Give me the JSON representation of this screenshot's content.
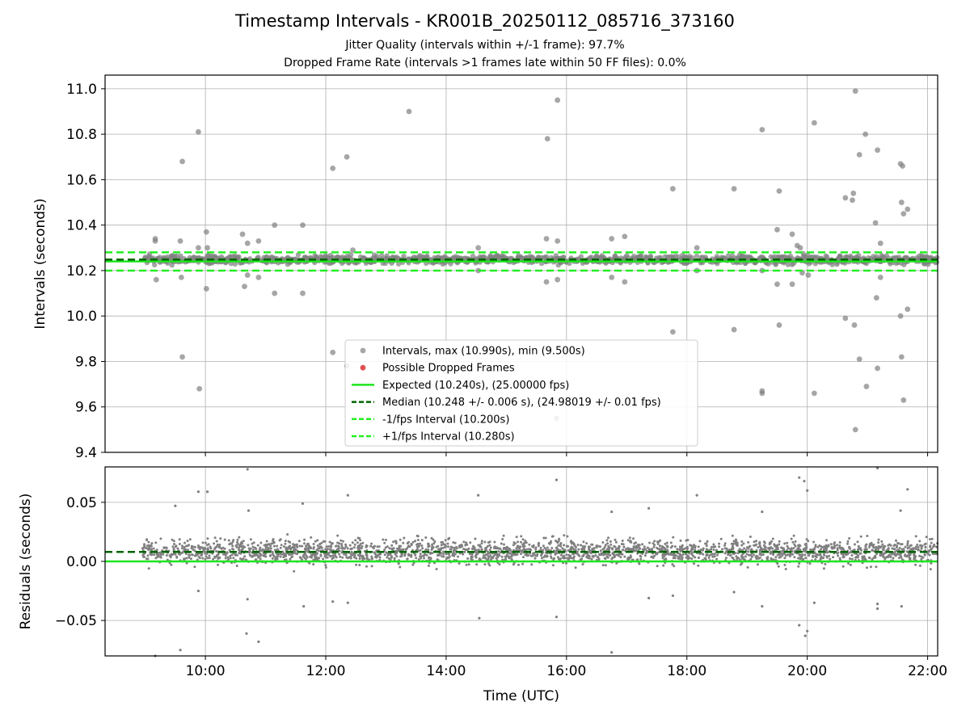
{
  "chart_data": [
    {
      "type": "scatter",
      "title": "Timestamp Intervals - KR001B_20250112_085716_373160",
      "subtitles": [
        "Jitter Quality (intervals within +/-1 frame): 97.7%",
        "Dropped Frame Rate (intervals >1 frames late within 50 FF files): 0.0%"
      ],
      "xlabel": "",
      "ylabel": "Intervals (seconds)",
      "xlim": [
        "08:20",
        "22:10"
      ],
      "ylim": [
        9.4,
        11.06
      ],
      "xtick_labels": [
        "10:00",
        "12:00",
        "14:00",
        "16:00",
        "18:00",
        "20:00",
        "22:00"
      ],
      "ytick_labels": [
        "9.4",
        "9.6",
        "9.8",
        "10.0",
        "10.2",
        "10.4",
        "10.6",
        "10.8",
        "11.0"
      ],
      "grid": true,
      "legend_position": "lower-center",
      "legend": [
        "Intervals, max (10.990s), min (9.500s)",
        "Possible Dropped Frames",
        "Expected (10.240s), (25.00000 fps)",
        "Median (10.248 +/- 0.006 s), (24.98019 +/- 0.01 fps)",
        "-1/fps Interval (10.200s)",
        "+1/fps Interval (10.280s)"
      ],
      "reference_lines": {
        "expected": 10.24,
        "median": 10.248,
        "minus_1_fps": 10.2,
        "plus_1_fps": 10.28
      },
      "dense_band": {
        "x_start": "08:57",
        "x_end": "22:10",
        "center": 10.248,
        "spread": 0.025
      },
      "outliers": [
        [
          "09:10",
          10.34
        ],
        [
          "09:10",
          10.33
        ],
        [
          "09:11",
          10.16
        ],
        [
          "09:35",
          10.33
        ],
        [
          "09:37",
          10.68
        ],
        [
          "09:37",
          9.82
        ],
        [
          "09:36",
          10.17
        ],
        [
          "09:53",
          10.81
        ],
        [
          "09:53",
          10.3
        ],
        [
          "09:54",
          9.68
        ],
        [
          "10:01",
          10.37
        ],
        [
          "10:02",
          10.3
        ],
        [
          "10:01",
          10.12
        ],
        [
          "10:37",
          10.36
        ],
        [
          "10:39",
          10.13
        ],
        [
          "10:42",
          10.32
        ],
        [
          "10:42",
          10.18
        ],
        [
          "10:53",
          10.33
        ],
        [
          "10:53",
          10.17
        ],
        [
          "11:09",
          10.4
        ],
        [
          "11:09",
          10.1
        ],
        [
          "11:37",
          10.4
        ],
        [
          "11:37",
          10.1
        ],
        [
          "12:07",
          10.65
        ],
        [
          "12:07",
          9.84
        ],
        [
          "12:21",
          10.7
        ],
        [
          "12:21",
          9.78
        ],
        [
          "12:27",
          10.29
        ],
        [
          "13:23",
          10.9
        ],
        [
          "14:32",
          10.3
        ],
        [
          "14:32",
          10.2
        ],
        [
          "15:40",
          10.34
        ],
        [
          "15:41",
          10.78
        ],
        [
          "15:40",
          10.15
        ],
        [
          "15:51",
          10.95
        ],
        [
          "15:51",
          10.33
        ],
        [
          "15:51",
          10.16
        ],
        [
          "15:50",
          9.55
        ],
        [
          "16:45",
          10.34
        ],
        [
          "16:45",
          10.17
        ],
        [
          "16:58",
          10.35
        ],
        [
          "16:58",
          10.15
        ],
        [
          "17:46",
          10.56
        ],
        [
          "17:46",
          9.93
        ],
        [
          "18:10",
          10.3
        ],
        [
          "18:10",
          10.2
        ],
        [
          "18:47",
          10.56
        ],
        [
          "18:47",
          9.94
        ],
        [
          "19:15",
          10.82
        ],
        [
          "19:15",
          9.67
        ],
        [
          "19:15",
          9.66
        ],
        [
          "19:15",
          10.2
        ],
        [
          "19:30",
          10.38
        ],
        [
          "19:32",
          10.55
        ],
        [
          "19:32",
          9.96
        ],
        [
          "19:30",
          10.14
        ],
        [
          "19:45",
          10.36
        ],
        [
          "19:45",
          10.14
        ],
        [
          "19:50",
          10.31
        ],
        [
          "19:53",
          10.3
        ],
        [
          "19:55",
          10.19
        ],
        [
          "20:01",
          10.18
        ],
        [
          "20:07",
          10.85
        ],
        [
          "20:07",
          9.66
        ],
        [
          "20:38",
          10.52
        ],
        [
          "20:38",
          9.99
        ],
        [
          "20:45",
          10.51
        ],
        [
          "20:46",
          10.54
        ],
        [
          "20:47",
          9.96
        ],
        [
          "20:48",
          9.5
        ],
        [
          "20:48",
          10.99
        ],
        [
          "20:52",
          10.71
        ],
        [
          "20:52",
          9.81
        ],
        [
          "20:58",
          10.8
        ],
        [
          "20:59",
          9.69
        ],
        [
          "21:08",
          10.41
        ],
        [
          "21:09",
          10.08
        ],
        [
          "21:10",
          10.73
        ],
        [
          "21:10",
          9.77
        ],
        [
          "21:13",
          10.32
        ],
        [
          "21:13",
          10.17
        ],
        [
          "21:33",
          10.67
        ],
        [
          "21:34",
          10.5
        ],
        [
          "21:33",
          10.0
        ],
        [
          "21:34",
          9.82
        ],
        [
          "21:35",
          10.66
        ],
        [
          "21:36",
          10.45
        ],
        [
          "21:36",
          9.63
        ],
        [
          "21:40",
          10.47
        ],
        [
          "21:40",
          10.03
        ],
        [
          "21:40",
          10.25
        ],
        [
          "22:05",
          10.25
        ],
        [
          "22:07",
          10.25
        ]
      ]
    },
    {
      "type": "scatter",
      "xlabel": "Time (UTC)",
      "ylabel": "Residuals (seconds)",
      "xlim": [
        "08:20",
        "22:10"
      ],
      "ylim": [
        -0.08,
        0.08
      ],
      "xtick_labels": [
        "10:00",
        "12:00",
        "14:00",
        "16:00",
        "18:00",
        "20:00",
        "22:00"
      ],
      "ytick_labels": [
        "−0.05",
        "0.00",
        "0.05"
      ],
      "grid": true,
      "reference_lines": {
        "zero": 0.0,
        "median_offset": 0.008
      },
      "dense_band": {
        "x_start": "08:57",
        "x_end": "22:10",
        "center": 0.008,
        "spread": 0.012
      },
      "outliers": [
        [
          "09:10",
          -0.08
        ],
        [
          "09:35",
          -0.075
        ],
        [
          "09:30",
          0.047
        ],
        [
          "09:53",
          0.059
        ],
        [
          "09:53",
          -0.025
        ],
        [
          "10:02",
          0.059
        ],
        [
          "10:43",
          0.043
        ],
        [
          "10:42",
          -0.032
        ],
        [
          "10:41",
          -0.061
        ],
        [
          "10:42",
          0.078
        ],
        [
          "10:53",
          -0.068
        ],
        [
          "11:37",
          0.049
        ],
        [
          "11:38",
          -0.038
        ],
        [
          "12:07",
          -0.034
        ],
        [
          "12:22",
          -0.035
        ],
        [
          "12:22",
          0.056
        ],
        [
          "14:32",
          0.056
        ],
        [
          "14:33",
          -0.048
        ],
        [
          "15:50",
          0.069
        ],
        [
          "15:50",
          -0.047
        ],
        [
          "16:45",
          -0.077
        ],
        [
          "16:45",
          0.042
        ],
        [
          "17:22",
          0.045
        ],
        [
          "17:22",
          -0.031
        ],
        [
          "17:46",
          -0.029
        ],
        [
          "18:10",
          0.056
        ],
        [
          "18:47",
          -0.026
        ],
        [
          "19:15",
          0.042
        ],
        [
          "19:15",
          -0.038
        ],
        [
          "19:52",
          0.071
        ],
        [
          "19:57",
          0.068
        ],
        [
          "19:52",
          -0.054
        ],
        [
          "19:58",
          -0.063
        ],
        [
          "20:00",
          -0.059
        ],
        [
          "20:00",
          0.06
        ],
        [
          "20:07",
          -0.035
        ],
        [
          "21:10",
          0.079
        ],
        [
          "21:10",
          -0.036
        ],
        [
          "21:10",
          -0.04
        ],
        [
          "21:33",
          0.043
        ],
        [
          "21:34",
          -0.038
        ],
        [
          "21:40",
          0.061
        ]
      ]
    }
  ],
  "colors": {
    "points": "#808080",
    "expected": "#1ee61e",
    "median": "#006400",
    "fps_interval": "#22ee22",
    "dropped": "#e05050"
  }
}
